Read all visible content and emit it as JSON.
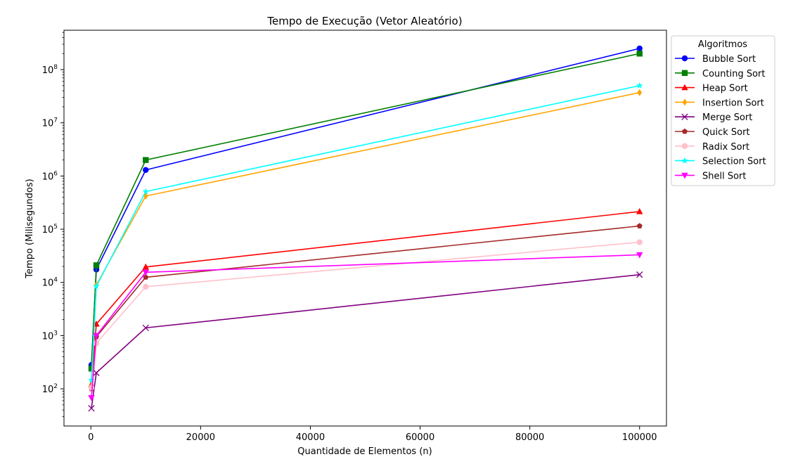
{
  "chart_data": {
    "type": "line",
    "title": "Tempo de Execução (Vetor Aleatório)",
    "xlabel": "Quantidade de Elementos (n)",
    "ylabel": "Tempo (Milisegundos)",
    "yscale": "log",
    "xlim": [
      -4900,
      104900
    ],
    "ylim": [
      20,
      550000000
    ],
    "x_ticks": [
      0,
      20000,
      40000,
      60000,
      80000,
      100000
    ],
    "x_tick_labels": [
      "0",
      "20000",
      "40000",
      "60000",
      "80000",
      "100000"
    ],
    "y_ticks": [
      100,
      1000,
      10000,
      100000,
      1000000,
      10000000,
      100000000
    ],
    "y_tick_labels": [
      {
        "base": "10",
        "exp": "2"
      },
      {
        "base": "10",
        "exp": "3"
      },
      {
        "base": "10",
        "exp": "4"
      },
      {
        "base": "10",
        "exp": "5"
      },
      {
        "base": "10",
        "exp": "6"
      },
      {
        "base": "10",
        "exp": "7"
      },
      {
        "base": "10",
        "exp": "8"
      }
    ],
    "grid": false,
    "legend_title": "Algoritmos",
    "legend_position": "outside-top-right",
    "x": [
      100,
      1000,
      10000,
      100000
    ],
    "series": [
      {
        "name": "Bubble Sort",
        "color": "#0000ff",
        "marker": "circle",
        "values": [
          280,
          17500,
          1300000,
          250000000
        ]
      },
      {
        "name": "Counting Sort",
        "color": "#008000",
        "marker": "square",
        "values": [
          240,
          21000,
          2000000,
          200000000
        ]
      },
      {
        "name": "Heap Sort",
        "color": "#ff0000",
        "marker": "triangle-up",
        "values": [
          120,
          1650,
          19500,
          215000
        ]
      },
      {
        "name": "Insertion Sort",
        "color": "#ffa500",
        "marker": "diamond",
        "values": [
          110,
          9000,
          420000,
          37000000
        ]
      },
      {
        "name": "Merge Sort",
        "color": "#800080",
        "marker": "x",
        "values": [
          43,
          200,
          1400,
          14000
        ]
      },
      {
        "name": "Quick Sort",
        "color": "#a52a2a",
        "marker": "pentagon",
        "values": [
          100,
          950,
          12500,
          115000
        ]
      },
      {
        "name": "Radix Sort",
        "color": "#ffc0cb",
        "marker": "circle",
        "values": [
          105,
          720,
          8300,
          57000
        ]
      },
      {
        "name": "Selection Sort",
        "color": "#00ffff",
        "marker": "star",
        "values": [
          145,
          8500,
          510000,
          50000000
        ]
      },
      {
        "name": "Shell Sort",
        "color": "#ff00ff",
        "marker": "triangle-down",
        "values": [
          68,
          1000,
          15500,
          33000
        ]
      }
    ]
  }
}
